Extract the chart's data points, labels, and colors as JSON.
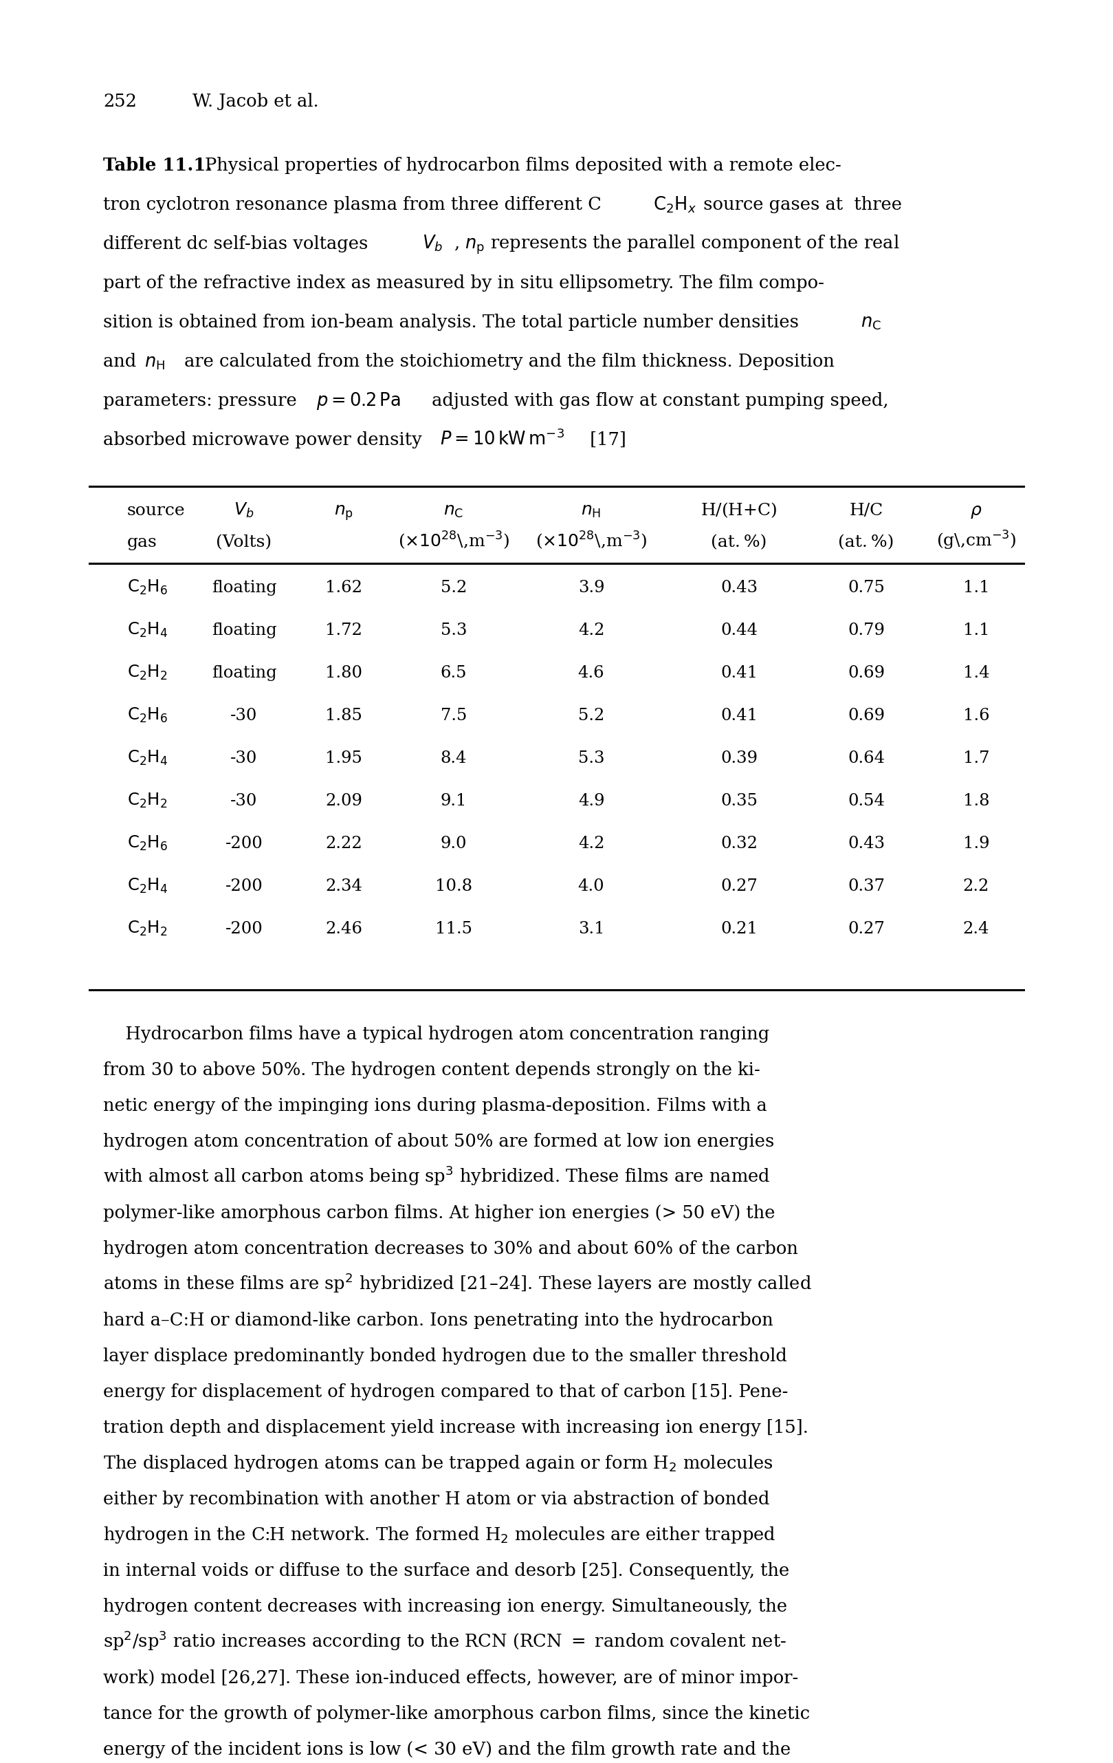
{
  "page_number": "252",
  "author": "W. Jacob et al.",
  "table_data": [
    [
      "C2H6",
      "floating",
      "1.62",
      "5.2",
      "3.9",
      "0.43",
      "0.75",
      "1.1"
    ],
    [
      "C2H4",
      "floating",
      "1.72",
      "5.3",
      "4.2",
      "0.44",
      "0.79",
      "1.1"
    ],
    [
      "C2H2",
      "floating",
      "1.80",
      "6.5",
      "4.6",
      "0.41",
      "0.69",
      "1.4"
    ],
    [
      "C2H6",
      "-30",
      "1.85",
      "7.5",
      "5.2",
      "0.41",
      "0.69",
      "1.6"
    ],
    [
      "C2H4",
      "-30",
      "1.95",
      "8.4",
      "5.3",
      "0.39",
      "0.64",
      "1.7"
    ],
    [
      "C2H2",
      "-30",
      "2.09",
      "9.1",
      "4.9",
      "0.35",
      "0.54",
      "1.8"
    ],
    [
      "C2H6",
      "-200",
      "2.22",
      "9.0",
      "4.2",
      "0.32",
      "0.43",
      "1.9"
    ],
    [
      "C2H4",
      "-200",
      "2.34",
      "10.8",
      "4.0",
      "0.27",
      "0.37",
      "2.2"
    ],
    [
      "C2H2",
      "-200",
      "2.46",
      "11.5",
      "3.1",
      "0.21",
      "0.27",
      "2.4"
    ]
  ],
  "background_color": "#ffffff",
  "text_color": "#000000"
}
